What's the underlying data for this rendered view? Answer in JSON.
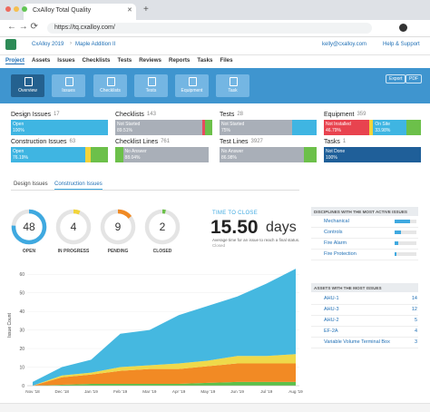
{
  "browser": {
    "tab_title": "CxAlloy Total Quality",
    "url": "https://tq.cxalloy.com/"
  },
  "header": {
    "breadcrumb": [
      "CxAlloy 2019",
      "Maple Addition II"
    ],
    "user": "kelly@cxalloy.com",
    "help": "Help & Support"
  },
  "menu": [
    "Project",
    "Assets",
    "Issues",
    "Checklists",
    "Tests",
    "Reviews",
    "Reports",
    "Tasks",
    "Files"
  ],
  "toolbar": {
    "buttons": [
      "Overview",
      "Issues",
      "Checklists",
      "Tests",
      "Equipment",
      "Task"
    ],
    "actions": [
      "Export",
      "PDF"
    ]
  },
  "cards": [
    {
      "title": "Design Issues",
      "count": 17,
      "segments": [
        {
          "status": "Open",
          "value": 100,
          "value_label": "100%",
          "color": "#3fb5e2"
        }
      ]
    },
    {
      "title": "Checklists",
      "count": 143,
      "segments": [
        {
          "status": "Not Started",
          "value": 89.51,
          "value_label": "89.51%",
          "color": "#a9afb8"
        },
        {
          "value": 3,
          "color": "#e84a5f"
        },
        {
          "value": 7.49,
          "color": "#6cc04a"
        }
      ]
    },
    {
      "title": "Tests",
      "count": 28,
      "segments": [
        {
          "status": "Not Started",
          "value": 75,
          "value_label": "75%",
          "color": "#a9afb8"
        },
        {
          "value": 25,
          "color": "#3fb5e2"
        }
      ]
    },
    {
      "title": "Equipment",
      "count": 359,
      "segments": [
        {
          "status": "Not Installed",
          "value": 46.79,
          "value_label": "46.79%",
          "color": "#e8434f"
        },
        {
          "value": 4,
          "color": "#f2d43a"
        },
        {
          "status": "On Site",
          "value": 33.98,
          "value_label": "33.98%",
          "color": "#3fb5e2"
        },
        {
          "value": 15.23,
          "color": "#6cc04a"
        }
      ]
    },
    {
      "title": "Construction Issues",
      "count": 63,
      "segments": [
        {
          "status": "Open",
          "value": 76.19,
          "value_label": "76.19%",
          "color": "#3fb5e2"
        },
        {
          "value": 6,
          "color": "#f2d43a"
        },
        {
          "value": 17.81,
          "color": "#6cc04a"
        }
      ]
    },
    {
      "title": "Checklist Lines",
      "count": 761,
      "segments": [
        {
          "value": 8,
          "color": "#6cc04a"
        },
        {
          "status": "No Answer",
          "value": 88.04,
          "value_label": "88.04%",
          "color": "#a9afb8"
        }
      ]
    },
    {
      "title": "Test Lines",
      "count": 3927,
      "segments": [
        {
          "status": "No Answer",
          "value": 86.98,
          "value_label": "86.98%",
          "color": "#a9afb8"
        },
        {
          "value": 13.02,
          "color": "#6cc04a"
        }
      ]
    },
    {
      "title": "Tasks",
      "count": 1,
      "segments": [
        {
          "status": "Not Done",
          "value": 100,
          "value_label": "100%",
          "color": "#1f5f99"
        }
      ]
    }
  ],
  "tabs": [
    "Design Issues",
    "Construction Issues"
  ],
  "active_tab": 1,
  "status_counts": [
    {
      "value": 48,
      "label": "OPEN",
      "color": "#3fa9e0"
    },
    {
      "value": 4,
      "label": "IN PROGRESS",
      "color": "#f2d43a"
    },
    {
      "value": 9,
      "label": "PENDING",
      "color": "#f08a24"
    },
    {
      "value": 2,
      "label": "CLOSED",
      "color": "#6cc04a"
    }
  ],
  "time_to_close": {
    "heading": "TIME TO CLOSE",
    "value": "15.50",
    "unit": "days",
    "note": "Average time for an issue to reach a final status.",
    "link": "Closed"
  },
  "disciplines": {
    "title": "DISCIPLINES WITH THE MOST ACTIVE ISSUES",
    "items": [
      "Mechanical",
      "Controls",
      "Fire Alarm",
      "Fire Protection"
    ]
  },
  "assets": {
    "title": "ASSETS WITH THE MOST ISSUES",
    "items": [
      {
        "name": "AHU-1",
        "count": 14
      },
      {
        "name": "AHU-3",
        "count": 12
      },
      {
        "name": "AHU-2",
        "count": 5
      },
      {
        "name": "EF-2A",
        "count": 4
      },
      {
        "name": "Variable Volume Terminal Box",
        "count": 3
      }
    ]
  },
  "chart": {
    "type": "area",
    "ylabel": "Issue Count",
    "categories": [
      "Nov '18",
      "Dec '18",
      "Jan '19",
      "Feb '19",
      "Mar '19",
      "Apr '19",
      "May '19",
      "Jun '19",
      "Jul '19",
      "Aug '19"
    ],
    "ylim": [
      0,
      65
    ],
    "yticks": [
      0,
      10,
      20,
      30,
      40,
      50,
      60
    ],
    "series": [
      {
        "color": "#5cc04a",
        "values": [
          0,
          0.5,
          1,
          1,
          1,
          1,
          1.5,
          2,
          2,
          2
        ]
      },
      {
        "color": "#f28a24",
        "values": [
          0,
          4,
          5,
          7,
          8,
          8,
          9,
          10,
          10,
          10
        ]
      },
      {
        "color": "#efd94a",
        "values": [
          0,
          1,
          1,
          2,
          2,
          3,
          3,
          4,
          4,
          5
        ]
      },
      {
        "color": "#45b8e0",
        "values": [
          2,
          4.5,
          7,
          18,
          19,
          26,
          29.5,
          32,
          39,
          46
        ]
      }
    ]
  }
}
